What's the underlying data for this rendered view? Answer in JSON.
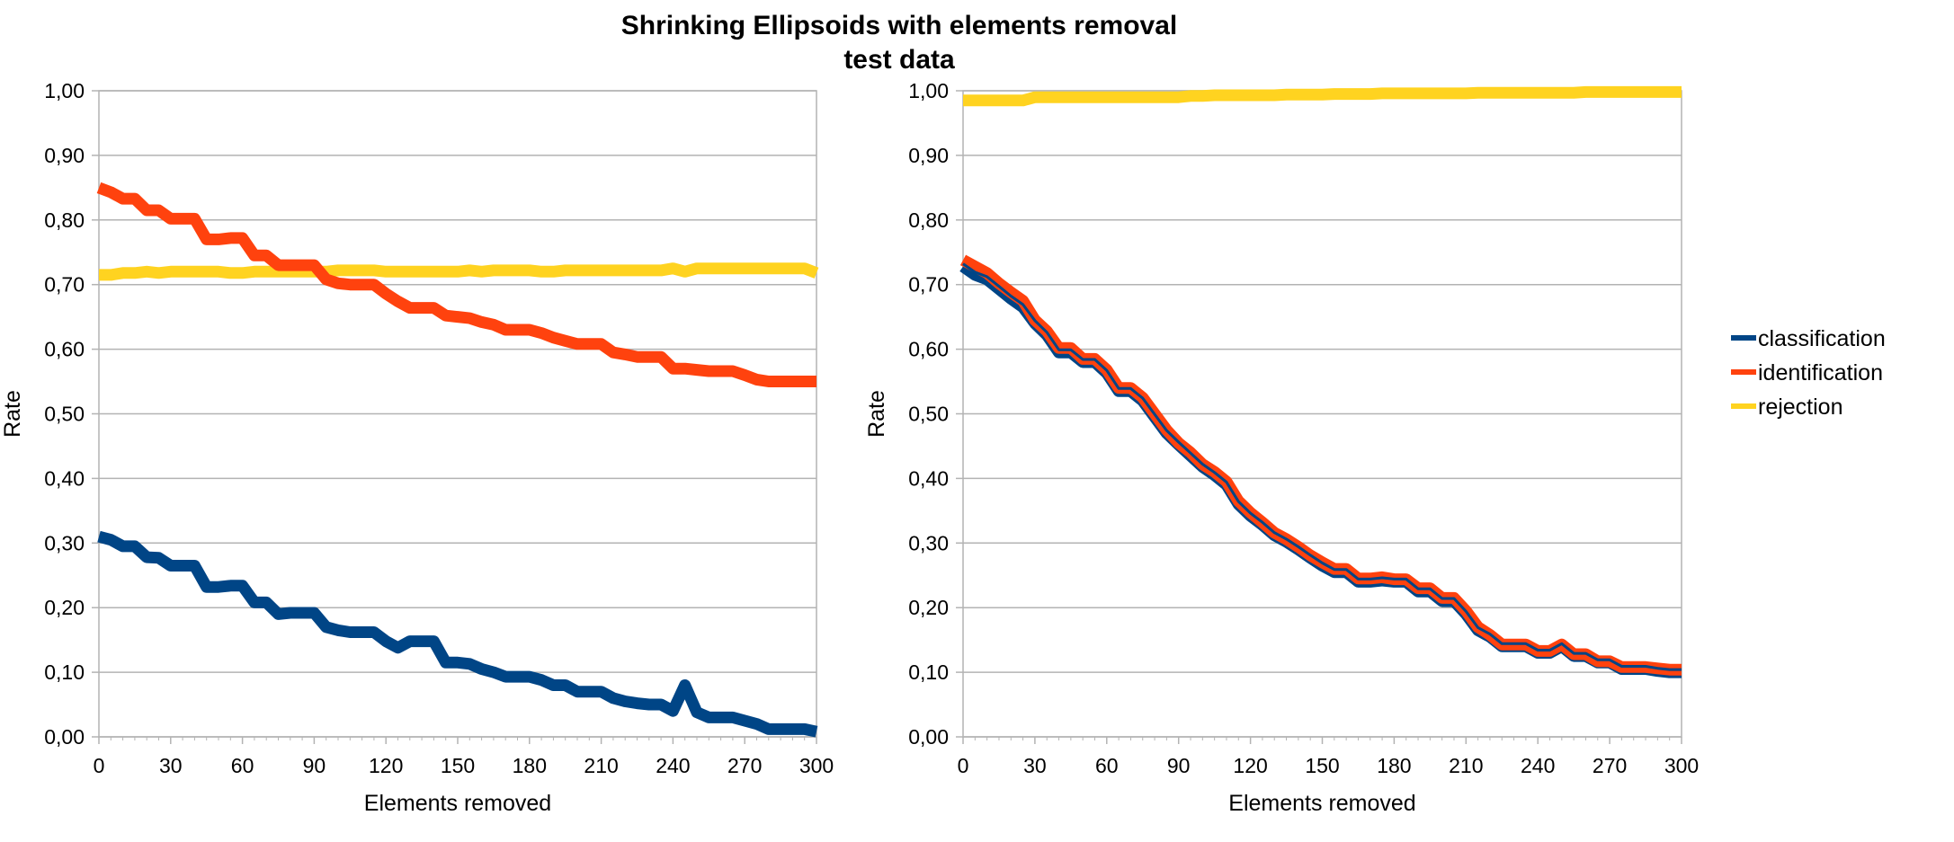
{
  "title": "Shrinking Ellipsoids with elements removal",
  "subtitle": "test data",
  "legend": {
    "position": "right",
    "items": [
      {
        "name": "classification",
        "color": "#004586"
      },
      {
        "name": "identification",
        "color": "#ff420e"
      },
      {
        "name": "rejection",
        "color": "#ffd320"
      }
    ]
  },
  "chart_data": [
    {
      "type": "line",
      "xlabel": "Elements removed",
      "ylabel": "Rate",
      "xlim": [
        0,
        300
      ],
      "ylim": [
        0,
        1
      ],
      "xticks": [
        "0",
        "30",
        "60",
        "90",
        "120",
        "150",
        "180",
        "210",
        "240",
        "270",
        "300"
      ],
      "yticks": [
        "0,00",
        "0,10",
        "0,20",
        "0,30",
        "0,40",
        "0,50",
        "0,60",
        "0,70",
        "0,80",
        "0,90",
        "1,00"
      ],
      "grid": true,
      "series": [
        {
          "name": "classification",
          "color": "#004586",
          "x": [
            0,
            5,
            10,
            15,
            20,
            25,
            30,
            35,
            40,
            45,
            50,
            55,
            60,
            65,
            70,
            75,
            80,
            85,
            90,
            95,
            100,
            105,
            110,
            115,
            120,
            125,
            130,
            135,
            140,
            145,
            150,
            155,
            160,
            165,
            170,
            175,
            180,
            185,
            190,
            195,
            200,
            205,
            210,
            215,
            220,
            225,
            230,
            235,
            240,
            245,
            250,
            255,
            260,
            265,
            270,
            275,
            280,
            285,
            290,
            295,
            300
          ],
          "values": [
            0.31,
            0.305,
            0.295,
            0.295,
            0.278,
            0.277,
            0.265,
            0.265,
            0.265,
            0.232,
            0.232,
            0.234,
            0.234,
            0.208,
            0.208,
            0.19,
            0.192,
            0.192,
            0.192,
            0.17,
            0.165,
            0.162,
            0.162,
            0.162,
            0.148,
            0.138,
            0.148,
            0.148,
            0.148,
            0.115,
            0.115,
            0.113,
            0.105,
            0.1,
            0.093,
            0.093,
            0.093,
            0.088,
            0.08,
            0.08,
            0.07,
            0.07,
            0.07,
            0.06,
            0.055,
            0.052,
            0.05,
            0.05,
            0.04,
            0.08,
            0.038,
            0.03,
            0.03,
            0.03,
            0.025,
            0.02,
            0.012,
            0.012,
            0.012,
            0.012,
            0.008
          ]
        },
        {
          "name": "identification",
          "color": "#ff420e",
          "x": [
            0,
            5,
            10,
            15,
            20,
            25,
            30,
            35,
            40,
            45,
            50,
            55,
            60,
            65,
            70,
            75,
            80,
            85,
            90,
            95,
            100,
            105,
            110,
            115,
            120,
            125,
            130,
            135,
            140,
            145,
            150,
            155,
            160,
            165,
            170,
            175,
            180,
            185,
            190,
            195,
            200,
            205,
            210,
            215,
            220,
            225,
            230,
            235,
            240,
            245,
            250,
            255,
            260,
            265,
            270,
            275,
            280,
            285,
            290,
            295,
            300
          ],
          "values": [
            0.85,
            0.843,
            0.833,
            0.833,
            0.815,
            0.815,
            0.802,
            0.802,
            0.802,
            0.77,
            0.77,
            0.772,
            0.772,
            0.745,
            0.745,
            0.73,
            0.73,
            0.73,
            0.73,
            0.708,
            0.702,
            0.7,
            0.7,
            0.7,
            0.686,
            0.674,
            0.664,
            0.664,
            0.664,
            0.652,
            0.65,
            0.648,
            0.642,
            0.638,
            0.63,
            0.63,
            0.63,
            0.625,
            0.618,
            0.613,
            0.608,
            0.608,
            0.608,
            0.595,
            0.592,
            0.588,
            0.588,
            0.588,
            0.57,
            0.57,
            0.568,
            0.566,
            0.566,
            0.566,
            0.56,
            0.553,
            0.55,
            0.55,
            0.55,
            0.55,
            0.55
          ]
        },
        {
          "name": "rejection",
          "color": "#ffd320",
          "x": [
            0,
            5,
            10,
            15,
            20,
            25,
            30,
            35,
            40,
            45,
            50,
            55,
            60,
            65,
            70,
            75,
            80,
            85,
            90,
            95,
            100,
            105,
            110,
            115,
            120,
            125,
            130,
            135,
            140,
            145,
            150,
            155,
            160,
            165,
            170,
            175,
            180,
            185,
            190,
            195,
            200,
            205,
            210,
            215,
            220,
            225,
            230,
            235,
            240,
            245,
            250,
            255,
            260,
            265,
            270,
            275,
            280,
            285,
            290,
            295,
            300
          ],
          "values": [
            0.715,
            0.715,
            0.718,
            0.718,
            0.72,
            0.718,
            0.72,
            0.72,
            0.72,
            0.72,
            0.72,
            0.718,
            0.718,
            0.72,
            0.72,
            0.72,
            0.72,
            0.72,
            0.72,
            0.72,
            0.722,
            0.722,
            0.722,
            0.722,
            0.72,
            0.72,
            0.72,
            0.72,
            0.72,
            0.72,
            0.72,
            0.722,
            0.72,
            0.722,
            0.722,
            0.722,
            0.722,
            0.72,
            0.72,
            0.722,
            0.722,
            0.722,
            0.722,
            0.722,
            0.722,
            0.722,
            0.722,
            0.722,
            0.725,
            0.72,
            0.725,
            0.725,
            0.725,
            0.725,
            0.725,
            0.725,
            0.725,
            0.725,
            0.725,
            0.725,
            0.718
          ]
        }
      ]
    },
    {
      "type": "line",
      "xlabel": "Elements removed",
      "ylabel": "Rate",
      "xlim": [
        0,
        300
      ],
      "ylim": [
        0,
        1
      ],
      "xticks": [
        "0",
        "30",
        "60",
        "90",
        "120",
        "150",
        "180",
        "210",
        "240",
        "270",
        "300"
      ],
      "yticks": [
        "0,00",
        "0,10",
        "0,20",
        "0,30",
        "0,40",
        "0,50",
        "0,60",
        "0,70",
        "0,80",
        "0,90",
        "1,00"
      ],
      "grid": true,
      "series": [
        {
          "name": "classification",
          "color": "#004586",
          "x": [
            0,
            5,
            10,
            15,
            20,
            25,
            30,
            35,
            40,
            45,
            50,
            55,
            60,
            65,
            70,
            75,
            80,
            85,
            90,
            95,
            100,
            105,
            110,
            115,
            120,
            125,
            130,
            135,
            140,
            145,
            150,
            155,
            160,
            165,
            170,
            175,
            180,
            185,
            190,
            195,
            200,
            205,
            210,
            215,
            220,
            225,
            230,
            235,
            240,
            245,
            250,
            255,
            260,
            265,
            270,
            275,
            280,
            285,
            290,
            295,
            300
          ],
          "values": [
            0.728,
            0.715,
            0.708,
            0.693,
            0.678,
            0.665,
            0.64,
            0.622,
            0.595,
            0.595,
            0.58,
            0.58,
            0.563,
            0.535,
            0.535,
            0.52,
            0.495,
            0.47,
            0.452,
            0.435,
            0.418,
            0.405,
            0.39,
            0.36,
            0.342,
            0.328,
            0.312,
            0.302,
            0.29,
            0.277,
            0.265,
            0.255,
            0.255,
            0.24,
            0.24,
            0.242,
            0.24,
            0.24,
            0.225,
            0.225,
            0.21,
            0.21,
            0.19,
            0.165,
            0.155,
            0.14,
            0.14,
            0.14,
            0.13,
            0.13,
            0.14,
            0.125,
            0.125,
            0.115,
            0.115,
            0.105,
            0.105,
            0.105,
            0.102,
            0.1,
            0.1
          ]
        },
        {
          "name": "identification",
          "color": "#ff420e",
          "x": [
            0,
            5,
            10,
            15,
            20,
            25,
            30,
            35,
            40,
            45,
            50,
            55,
            60,
            65,
            70,
            75,
            80,
            85,
            90,
            95,
            100,
            105,
            110,
            115,
            120,
            125,
            130,
            135,
            140,
            145,
            150,
            155,
            160,
            165,
            170,
            175,
            180,
            185,
            190,
            195,
            200,
            205,
            210,
            215,
            220,
            225,
            230,
            235,
            240,
            245,
            250,
            255,
            260,
            265,
            270,
            275,
            280,
            285,
            290,
            295,
            300
          ],
          "values": [
            0.738,
            0.728,
            0.718,
            0.702,
            0.688,
            0.675,
            0.645,
            0.628,
            0.602,
            0.602,
            0.585,
            0.585,
            0.568,
            0.54,
            0.54,
            0.525,
            0.5,
            0.475,
            0.455,
            0.44,
            0.422,
            0.41,
            0.395,
            0.365,
            0.347,
            0.332,
            0.316,
            0.306,
            0.294,
            0.281,
            0.27,
            0.26,
            0.26,
            0.245,
            0.245,
            0.247,
            0.244,
            0.244,
            0.23,
            0.23,
            0.215,
            0.215,
            0.195,
            0.17,
            0.158,
            0.143,
            0.143,
            0.143,
            0.133,
            0.133,
            0.143,
            0.128,
            0.128,
            0.117,
            0.117,
            0.108,
            0.108,
            0.108,
            0.106,
            0.104,
            0.104
          ]
        },
        {
          "name": "rejection",
          "color": "#ffd320",
          "x": [
            0,
            5,
            10,
            15,
            20,
            25,
            30,
            35,
            40,
            45,
            50,
            55,
            60,
            65,
            70,
            75,
            80,
            85,
            90,
            95,
            100,
            105,
            110,
            115,
            120,
            125,
            130,
            135,
            140,
            145,
            150,
            155,
            160,
            165,
            170,
            175,
            180,
            185,
            190,
            195,
            200,
            205,
            210,
            215,
            220,
            225,
            230,
            235,
            240,
            245,
            250,
            255,
            260,
            265,
            270,
            275,
            280,
            285,
            290,
            295,
            300
          ],
          "values": [
            0.985,
            0.985,
            0.985,
            0.985,
            0.985,
            0.985,
            0.99,
            0.99,
            0.99,
            0.99,
            0.99,
            0.99,
            0.99,
            0.99,
            0.99,
            0.99,
            0.99,
            0.99,
            0.99,
            0.992,
            0.992,
            0.993,
            0.993,
            0.993,
            0.993,
            0.993,
            0.993,
            0.994,
            0.994,
            0.994,
            0.994,
            0.995,
            0.995,
            0.995,
            0.995,
            0.996,
            0.996,
            0.996,
            0.996,
            0.996,
            0.996,
            0.996,
            0.996,
            0.997,
            0.997,
            0.997,
            0.997,
            0.997,
            0.997,
            0.997,
            0.997,
            0.997,
            0.998,
            0.998,
            0.998,
            0.998,
            0.998,
            0.998,
            0.998,
            0.998,
            0.998
          ]
        }
      ]
    }
  ]
}
